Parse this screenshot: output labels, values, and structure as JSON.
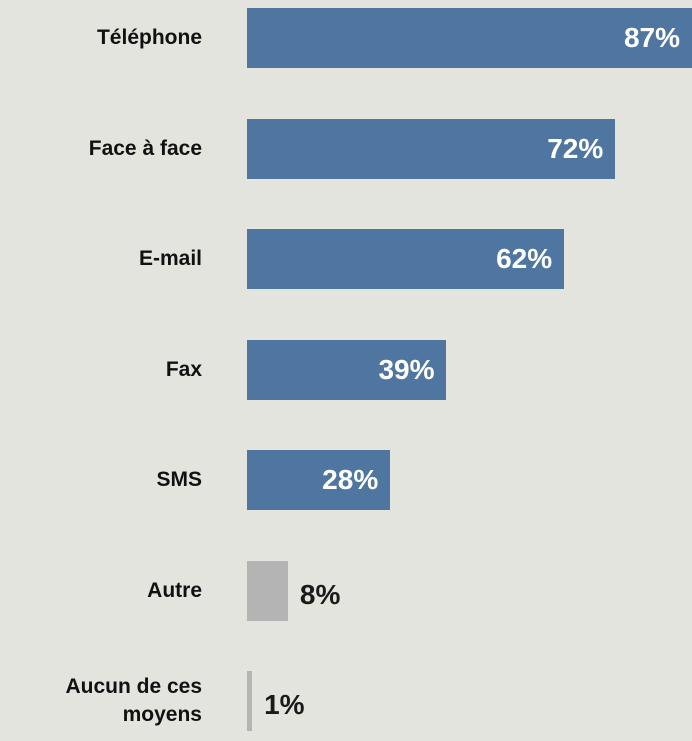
{
  "chart_data": {
    "type": "bar",
    "orientation": "horizontal",
    "categories": [
      "Téléphone",
      "Face à face",
      "E-mail",
      "Fax",
      "SMS",
      "Autre",
      "Aucun de ces moyens"
    ],
    "values": [
      87,
      72,
      62,
      39,
      28,
      8,
      1
    ],
    "value_labels": [
      "87%",
      "72%",
      "62%",
      "39%",
      "28%",
      "8%",
      "1%"
    ],
    "colors": [
      "#4f76a0",
      "#4f76a0",
      "#4f76a0",
      "#4f76a0",
      "#4f76a0",
      "#b4b4b4",
      "#b4b4b4"
    ]
  }
}
